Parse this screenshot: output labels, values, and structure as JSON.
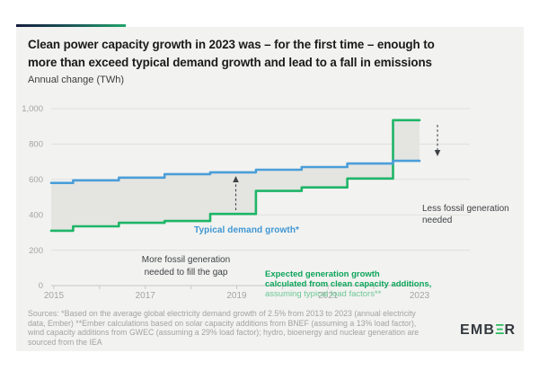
{
  "header": {
    "title_line1": "Clean power capacity growth in 2023 was – for the first time – enough to",
    "title_line2": "more than exceed typical demand growth and lead to a fall in emissions",
    "subtitle": "Annual change (TWh)"
  },
  "chart_data": {
    "type": "line",
    "subtype": "step",
    "title": "Clean power capacity growth in 2023 was – for the first time – enough to more than exceed typical demand growth and lead to a fall in emissions",
    "ylabel": "Annual change (TWh)",
    "xlabel": "",
    "x": [
      2015,
      2016,
      2017,
      2018,
      2019,
      2020,
      2021,
      2022,
      2023
    ],
    "series": [
      {
        "name": "Typical demand growth*",
        "color": "#4b9ed8",
        "values": [
          580,
          595,
          610,
          630,
          640,
          655,
          670,
          690,
          705
        ]
      },
      {
        "name": "Expected generation growth calculated from clean capacity additions, assuming typical load factors**",
        "color": "#1eb567",
        "values": [
          310,
          335,
          355,
          365,
          405,
          535,
          555,
          605,
          935
        ]
      }
    ],
    "ylim": [
      0,
      1000
    ],
    "yticks": [
      {
        "label": "1,000",
        "value": 1000
      },
      {
        "label": "800",
        "value": 800
      },
      {
        "label": "600",
        "value": 600
      },
      {
        "label": "400",
        "value": 400
      },
      {
        "label": "200",
        "value": 200
      },
      {
        "label": "0",
        "value": 0
      }
    ],
    "xticks": [
      {
        "label": "2015",
        "value": 2015
      },
      {
        "label": "2017",
        "value": 2017
      },
      {
        "label": "2019",
        "value": 2019
      },
      {
        "label": "2021",
        "value": 2021
      },
      {
        "label": "2023",
        "value": 2023
      }
    ],
    "grid": "horizontal",
    "legend_position": "inline-annotations",
    "band_between_series": true,
    "annotations": {
      "demand_label": "Typical demand growth*",
      "gap_more_line1": "More fossil generation",
      "gap_more_line2": "needed to fill the gap",
      "clean_label_bold1": "Expected generation growth",
      "clean_label_bold2": "calculated from clean capacity additions,",
      "clean_label_light": "assuming typical load factors**",
      "gap_less_line1": "Less fossil generation",
      "gap_less_line2": "needed"
    }
  },
  "colors": {
    "card_bg": "#f2f2f0",
    "band_fill": "#e4e4e1",
    "gridline": "#e0e0dd",
    "axis": "#c7c7c5",
    "axis_text": "#a4a4a2",
    "demand_blue": "#4b9ed8",
    "clean_green": "#1eb567",
    "annotation_dark": "#3e4245",
    "accent_navy": "#141c3c",
    "accent_green": "#21a36b"
  },
  "footer": {
    "sources_lines": [
      "Sources: *Based on the average global electricity demand growth of 2.5% from 2013 to 2023 (annual electricity",
      "data, Ember) **Ember calculations based on solar capacity additions from BNEF (assuming a 13% load factor),",
      "wind capacity additions from GWEC (assuming a 29% load factor); hydro, bioenergy and nuclear generation are",
      "sourced from the IEA"
    ],
    "logo_prefix": "EMB",
    "logo_green_e": "Ξ",
    "logo_suffix": "R"
  }
}
